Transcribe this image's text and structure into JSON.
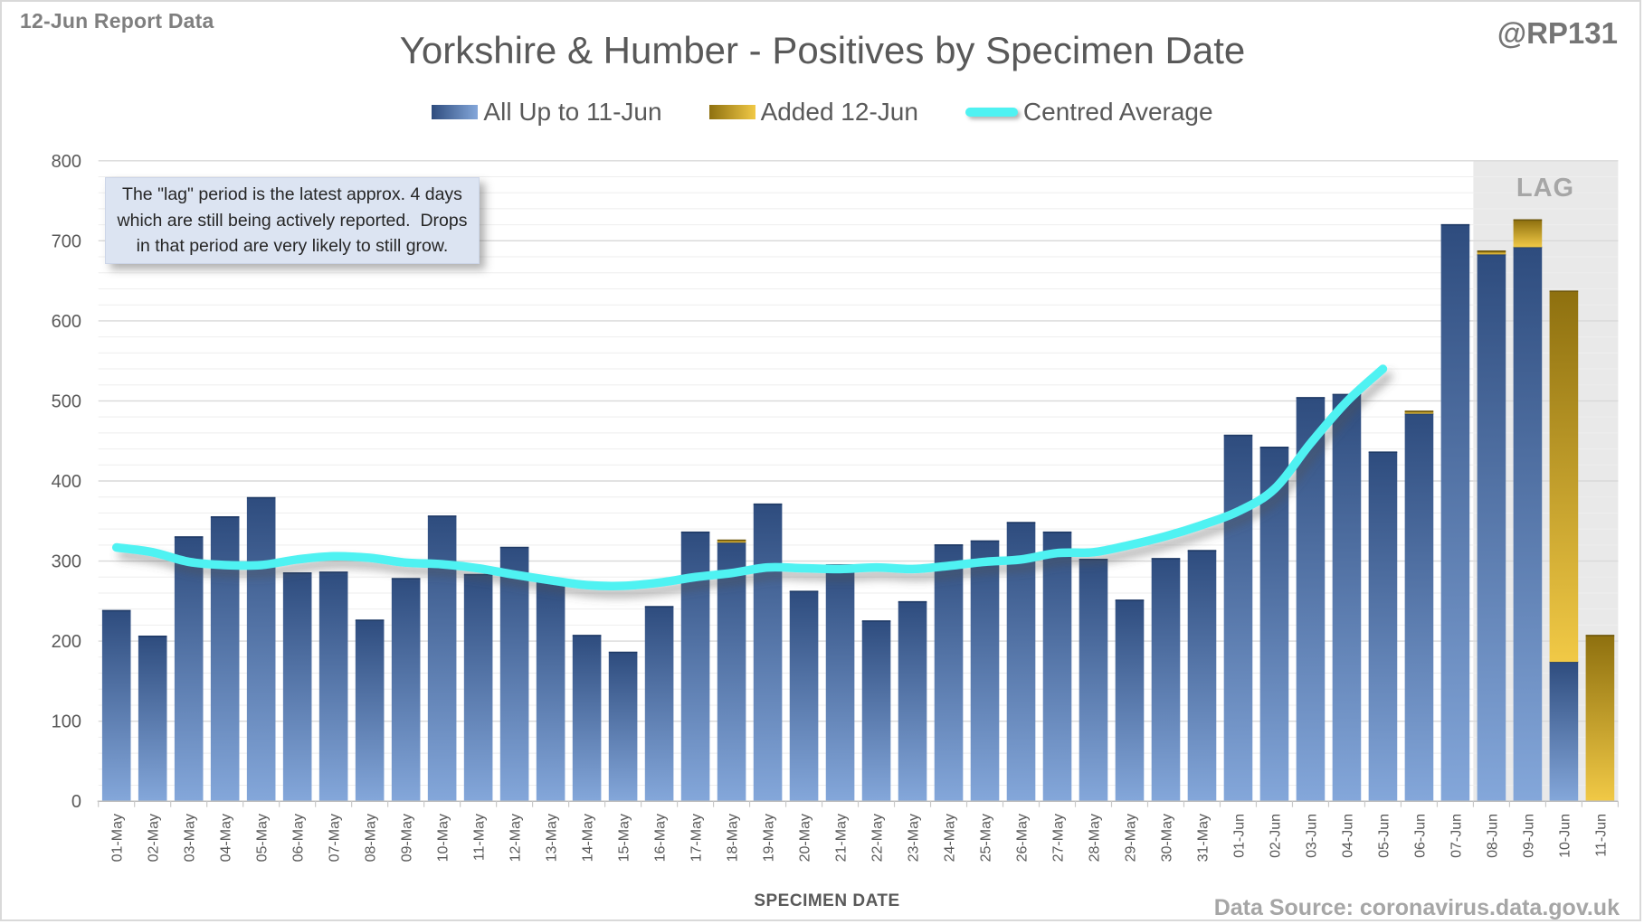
{
  "header": {
    "report_label": "12-Jun Report Data",
    "title": "Yorkshire & Humber - Positives by Specimen Date",
    "handle": "@RP131"
  },
  "legend": {
    "items": [
      {
        "label": "All Up to 11-Jun",
        "swatch": "bar-gradient-blue"
      },
      {
        "label": "Added 12-Jun",
        "swatch": "bar-gradient-gold"
      },
      {
        "label": "Centred Average",
        "swatch": "line-cyan"
      }
    ]
  },
  "annotation": {
    "lines": [
      "The \"lag\" period is the latest approx. 4 days",
      "which are still being actively reported.  Drops",
      "in that period are very likely to still grow."
    ]
  },
  "lag": {
    "label": "LAG"
  },
  "x_axis": {
    "title": "SPECIMEN DATE"
  },
  "footer": {
    "source": "Data Source: coronavirus.data.gov.uk"
  },
  "colors": {
    "bar_blue_top": "#2e4c7e",
    "bar_blue_bottom": "#84a7da",
    "bar_blue_edge": "#1f3a66",
    "bar_gold_top": "#8e700f",
    "bar_gold_bottom": "#f1c946",
    "bar_gold_edge": "#6e570b",
    "average_line": "#4ff2f2",
    "lag_band": "#e9e9e9",
    "major_gridline": "#d9d9d9",
    "minor_gridline": "#eeeeee",
    "axis_line": "#bfbfbf",
    "tick_mark": "#c9c9c9",
    "tick_label": "#595959"
  },
  "chart_data": {
    "type": "bar",
    "stacked": true,
    "title": "Yorkshire & Humber - Positives by Specimen Date",
    "xlabel": "SPECIMEN DATE",
    "ylabel": "",
    "ylim": [
      0,
      800
    ],
    "y_major_step": 100,
    "y_minor_step": 20,
    "grid": true,
    "legend_position": "top",
    "lag_start_category": "08-Jun",
    "categories": [
      "01-May",
      "02-May",
      "03-May",
      "04-May",
      "05-May",
      "06-May",
      "07-May",
      "08-May",
      "09-May",
      "10-May",
      "11-May",
      "12-May",
      "13-May",
      "14-May",
      "15-May",
      "16-May",
      "17-May",
      "18-May",
      "19-May",
      "20-May",
      "21-May",
      "22-May",
      "23-May",
      "24-May",
      "25-May",
      "26-May",
      "27-May",
      "28-May",
      "29-May",
      "30-May",
      "31-May",
      "01-Jun",
      "02-Jun",
      "03-Jun",
      "04-Jun",
      "05-Jun",
      "06-Jun",
      "07-Jun",
      "08-Jun",
      "09-Jun",
      "10-Jun",
      "11-Jun"
    ],
    "series": [
      {
        "name": "All Up to 11-Jun",
        "type": "bar",
        "values": [
          238,
          206,
          330,
          355,
          379,
          285,
          286,
          226,
          278,
          356,
          283,
          317,
          274,
          207,
          186,
          243,
          336,
          323,
          371,
          262,
          295,
          225,
          249,
          320,
          325,
          348,
          336,
          302,
          251,
          303,
          313,
          457,
          442,
          504,
          508,
          436,
          484,
          720,
          683,
          692,
          174,
          0
        ]
      },
      {
        "name": "Added 12-Jun",
        "type": "bar",
        "values": [
          0,
          0,
          0,
          0,
          0,
          0,
          0,
          0,
          0,
          0,
          0,
          0,
          0,
          0,
          0,
          0,
          0,
          3,
          0,
          0,
          0,
          0,
          0,
          0,
          0,
          0,
          0,
          0,
          0,
          0,
          0,
          0,
          0,
          0,
          0,
          0,
          3,
          0,
          4,
          34,
          463,
          207
        ]
      },
      {
        "name": "Centred Average",
        "type": "line",
        "values": [
          317,
          311,
          299,
          295,
          295,
          302,
          306,
          304,
          298,
          296,
          291,
          283,
          276,
          270,
          269,
          273,
          280,
          285,
          292,
          291,
          290,
          292,
          290,
          294,
          299,
          302,
          310,
          311,
          320,
          331,
          345,
          362,
          390,
          447,
          499,
          540,
          null,
          null,
          null,
          null,
          null,
          null
        ]
      }
    ]
  }
}
